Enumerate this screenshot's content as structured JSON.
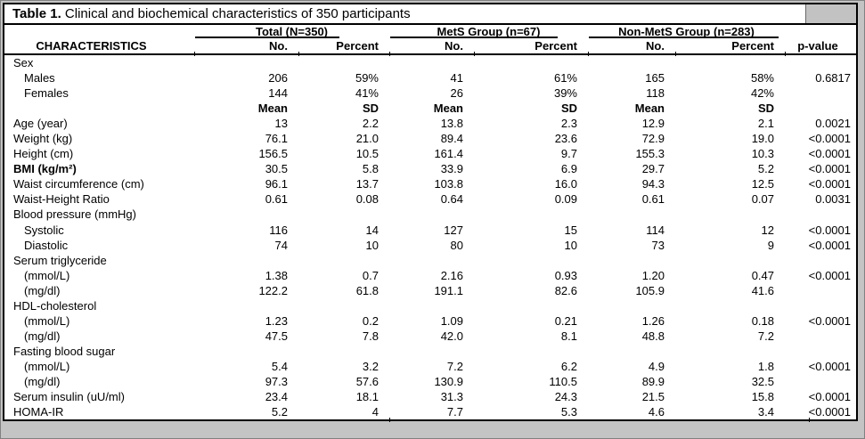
{
  "table": {
    "title": {
      "bold": "Table 1.",
      "rest": " Clinical and biochemical characteristics of 350 participants"
    },
    "characteristics_header": "CHARACTERISTICS",
    "p_value_header": "p-value",
    "groups": [
      {
        "label": "Total (N=350)",
        "no": "No.",
        "percent": "Percent"
      },
      {
        "label": "MetS Group (n=67)",
        "no": "No.",
        "percent": "Percent"
      },
      {
        "label": "Non-MetS Group (n=283)",
        "no": "No.",
        "percent": "Percent"
      }
    ],
    "rows": [
      {
        "type": "section",
        "label": "Sex"
      },
      {
        "type": "data",
        "indent": true,
        "label": "Males",
        "cells": [
          "206",
          "59%",
          "41",
          "61%",
          "165",
          "58%",
          "0.6817"
        ]
      },
      {
        "type": "data",
        "indent": true,
        "label": "Females",
        "cells": [
          "144",
          "41%",
          "26",
          "39%",
          "118",
          "42%",
          ""
        ]
      },
      {
        "type": "subhead",
        "label": "",
        "cells": [
          "Mean",
          "SD",
          "Mean",
          "SD",
          "Mean",
          "SD",
          ""
        ]
      },
      {
        "type": "data",
        "label": "Age (year)",
        "cells": [
          "13",
          "2.2",
          "13.8",
          "2.3",
          "12.9",
          "2.1",
          "0.0021"
        ]
      },
      {
        "type": "data",
        "label": "Weight (kg)",
        "cells": [
          "76.1",
          "21.0",
          "89.4",
          "23.6",
          "72.9",
          "19.0",
          "<0.0001"
        ]
      },
      {
        "type": "data",
        "label": "Height (cm)",
        "cells": [
          "156.5",
          "10.5",
          "161.4",
          "9.7",
          "155.3",
          "10.3",
          "<0.0001"
        ]
      },
      {
        "type": "data",
        "bold": true,
        "label": "BMI (kg/m²)",
        "cells": [
          "30.5",
          "5.8",
          "33.9",
          "6.9",
          "29.7",
          "5.2",
          "<0.0001"
        ]
      },
      {
        "type": "data",
        "label": "Waist circumference (cm)",
        "cells": [
          "96.1",
          "13.7",
          "103.8",
          "16.0",
          "94.3",
          "12.5",
          "<0.0001"
        ]
      },
      {
        "type": "data",
        "label": "Waist-Height Ratio",
        "cells": [
          "0.61",
          "0.08",
          "0.64",
          "0.09",
          "0.61",
          "0.07",
          "0.0031"
        ]
      },
      {
        "type": "section",
        "label": "Blood pressure (mmHg)"
      },
      {
        "type": "data",
        "indent": true,
        "label": "Systolic",
        "cells": [
          "116",
          "14",
          "127",
          "15",
          "114",
          "12",
          "<0.0001"
        ]
      },
      {
        "type": "data",
        "indent": true,
        "label": "Diastolic",
        "cells": [
          "74",
          "10",
          "80",
          "10",
          "73",
          "9",
          "<0.0001"
        ]
      },
      {
        "type": "section",
        "label": "Serum triglyceride"
      },
      {
        "type": "data",
        "indent": true,
        "label": "(mmol/L)",
        "cells": [
          "1.38",
          "0.7",
          "2.16",
          "0.93",
          "1.20",
          "0.47",
          "<0.0001"
        ]
      },
      {
        "type": "data",
        "indent": true,
        "label": "(mg/dl)",
        "cells": [
          "122.2",
          "61.8",
          "191.1",
          "82.6",
          "105.9",
          "41.6",
          ""
        ]
      },
      {
        "type": "section",
        "label": "HDL-cholesterol"
      },
      {
        "type": "data",
        "indent": true,
        "label": "(mmol/L)",
        "cells": [
          "1.23",
          "0.2",
          "1.09",
          "0.21",
          "1.26",
          "0.18",
          "<0.0001"
        ]
      },
      {
        "type": "data",
        "indent": true,
        "label": "(mg/dl)",
        "cells": [
          "47.5",
          "7.8",
          "42.0",
          "8.1",
          "48.8",
          "7.2",
          ""
        ]
      },
      {
        "type": "section",
        "label": "Fasting blood sugar"
      },
      {
        "type": "data",
        "indent": true,
        "label": "(mmol/L)",
        "cells": [
          "5.4",
          "3.2",
          "7.2",
          "6.2",
          "4.9",
          "1.8",
          "<0.0001"
        ]
      },
      {
        "type": "data",
        "indent": true,
        "label": "(mg/dl)",
        "cells": [
          "97.3",
          "57.6",
          "130.9",
          "110.5",
          "89.9",
          "32.5",
          ""
        ]
      },
      {
        "type": "data",
        "label": "Serum insulin (uU/ml)",
        "cells": [
          "23.4",
          "18.1",
          "31.3",
          "24.3",
          "21.5",
          "15.8",
          "<0.0001"
        ]
      },
      {
        "type": "data",
        "label": "HOMA-IR",
        "cells": [
          "5.2",
          "4",
          "7.7",
          "5.3",
          "4.6",
          "3.4",
          "<0.0001"
        ]
      }
    ]
  }
}
